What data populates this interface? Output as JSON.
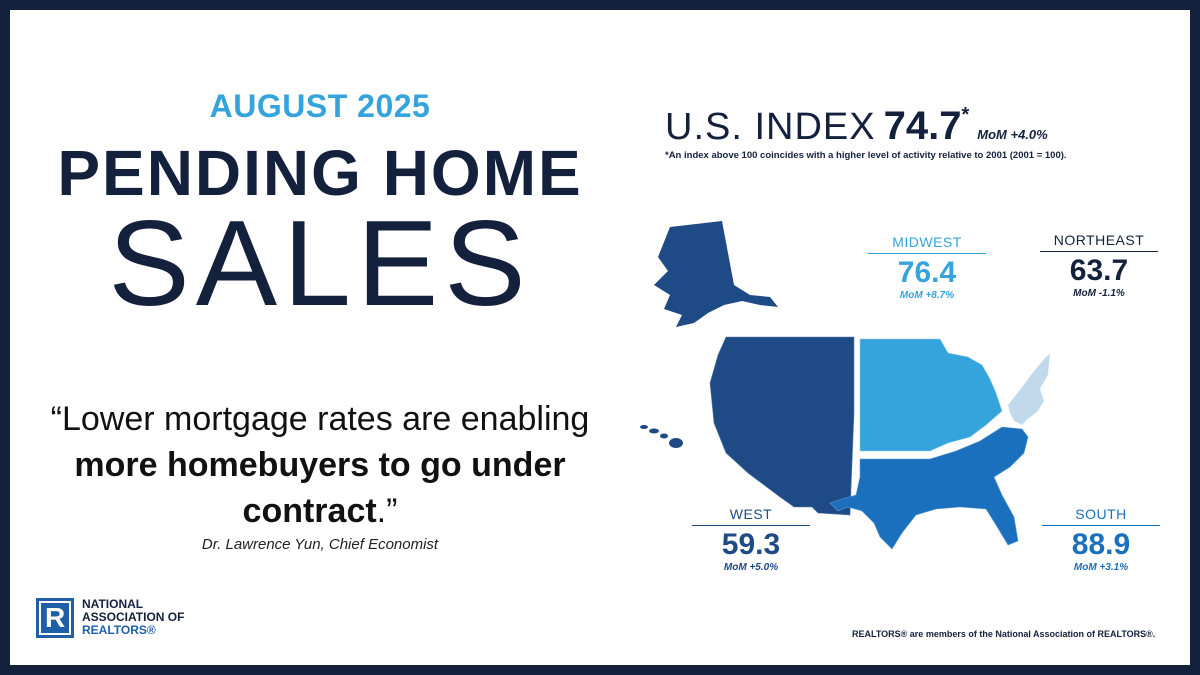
{
  "header": {
    "period": "AUGUST 2025",
    "title_line1": "PENDING HOME",
    "title_line2": "SALES"
  },
  "quote": {
    "open": "“Lower mortgage rates are enabling ",
    "bold": "more homebuyers to go under contract",
    "close": ".”",
    "attribution": "Dr. Lawrence Yun, Chief Economist"
  },
  "logo": {
    "mark": "R",
    "line1": "NATIONAL",
    "line2": "ASSOCIATION OF",
    "line3": "REALTORS®"
  },
  "us_index": {
    "label": "U.S. INDEX",
    "value": "74.7",
    "star": "*",
    "mom": "MoM +4.0%",
    "note": "*An index above 100 coincides with a higher level of activity relative to 2001 (2001 = 100)."
  },
  "regions": {
    "midwest": {
      "name": "MIDWEST",
      "value": "76.4",
      "mom": "MoM +8.7%",
      "color": "#35a3dc"
    },
    "northeast": {
      "name": "NORTHEAST",
      "value": "63.7",
      "mom": "MoM -1.1%",
      "color": "#14213d"
    },
    "west": {
      "name": "WEST",
      "value": "59.3",
      "mom": "MoM +5.0%",
      "color": "#1e4a86"
    },
    "south": {
      "name": "SOUTH",
      "value": "88.9",
      "mom": "MoM +3.1%",
      "color": "#1a70bd"
    }
  },
  "map_colors": {
    "west": "#1e4a86",
    "midwest": "#35a3dc",
    "northeast": "#c2d9ec",
    "south": "#1a70bd"
  },
  "footer": {
    "note": "REALTORS® are members of the National Association of REALTORS®."
  }
}
